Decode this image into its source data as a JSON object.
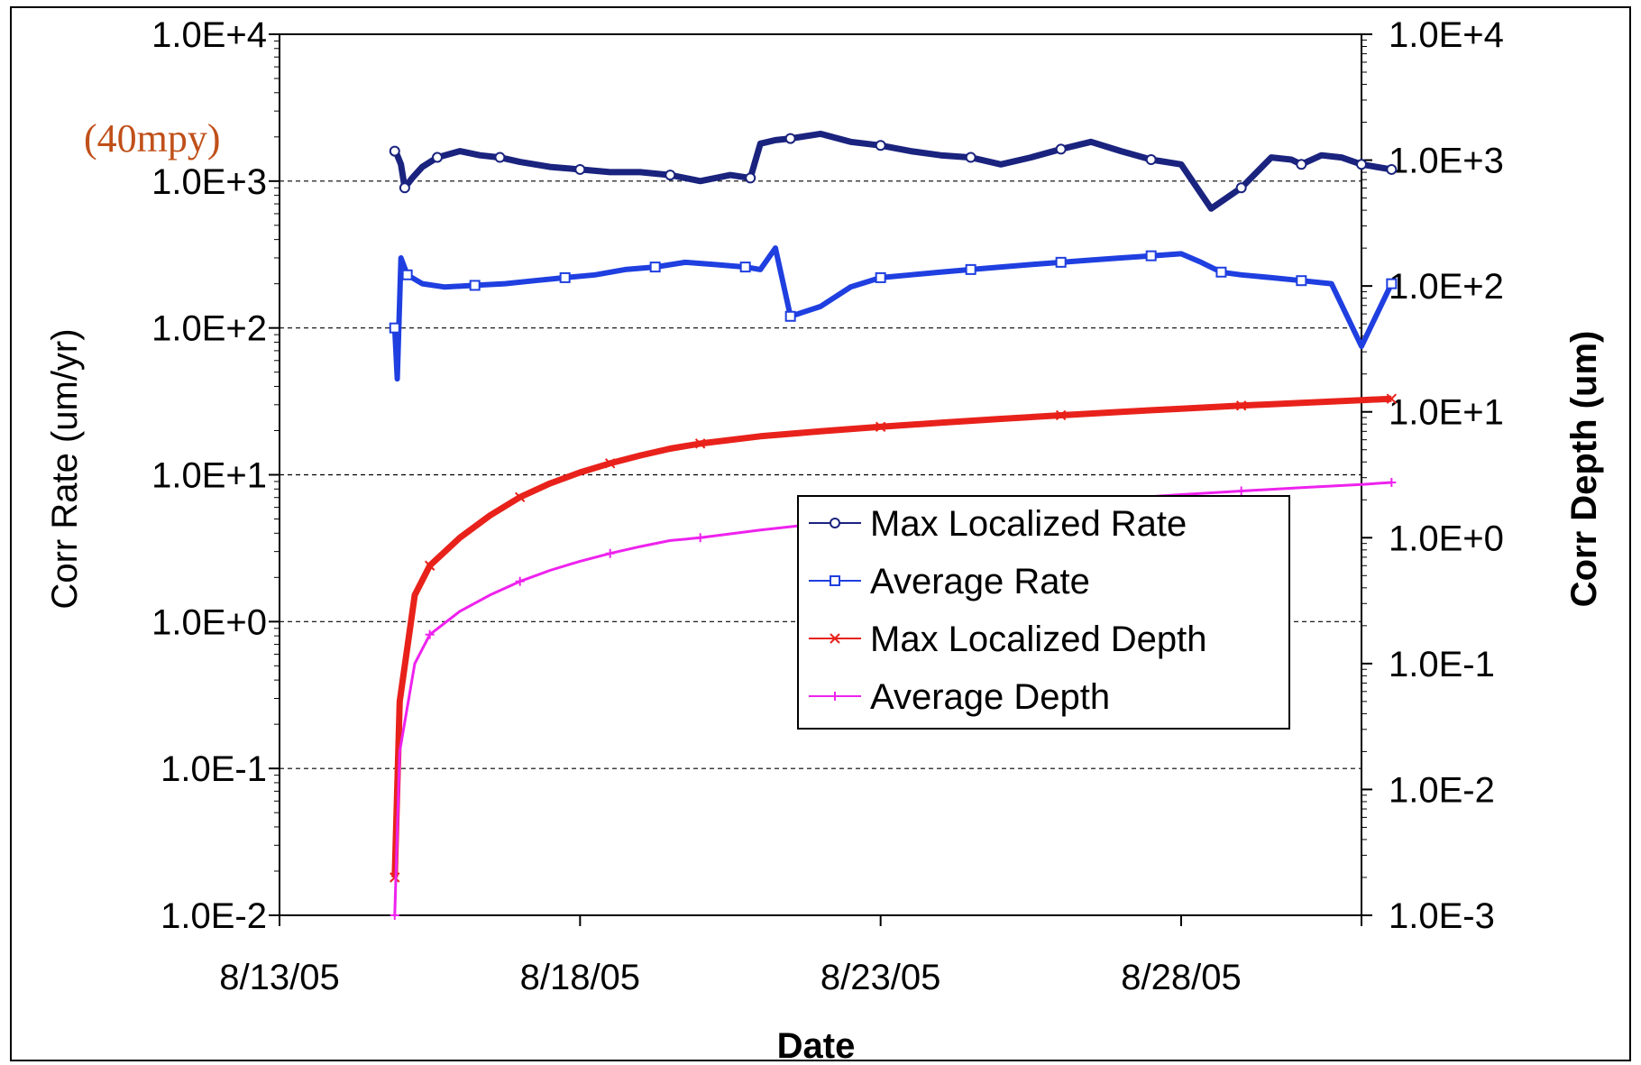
{
  "chart_data": {
    "type": "line",
    "title": "",
    "xlabel": "Date",
    "ylabel": "Corr Rate (um/yr)",
    "ylabel_right": "Corr Depth (um)",
    "x_type": "date",
    "x_ticks": [
      "8/13/05",
      "8/18/05",
      "8/23/05",
      "8/28/05"
    ],
    "xlim": [
      "2005-08-13",
      "2005-08-31"
    ],
    "y_scale": "log",
    "ylim": [
      0.01,
      10000
    ],
    "y_ticks": [
      "1.0E-2",
      "1.0E-1",
      "1.0E+0",
      "1.0E+1",
      "1.0E+2",
      "1.0E+3",
      "1.0E+4"
    ],
    "y2_scale": "log",
    "y2lim": [
      0.001,
      10000
    ],
    "y2_ticks": [
      "1.0E-3",
      "1.0E-2",
      "1.0E-1",
      "1.0E+0",
      "1.0E+1",
      "1.0E+2",
      "1.0E+3",
      "1.0E+4"
    ],
    "grid_y": true,
    "legend_position": "lower-right",
    "annotation": {
      "text": "(40mpy)",
      "color": "#c0501a",
      "y": 1000
    },
    "series": [
      {
        "name": "Max Localized Rate",
        "axis": "left",
        "color": "#1a237e",
        "marker": "circle",
        "x": [
          "2005-08-14 22:00",
          "2005-08-14 23:00",
          "2005-08-15 00:30",
          "2005-08-15 02:00",
          "2005-08-15 05:00",
          "2005-08-15 09:00",
          "2005-08-15 15:00",
          "2005-08-16 00:00",
          "2005-08-16 08:00",
          "2005-08-16 16:00",
          "2005-08-17 00:00",
          "2005-08-17 12:00",
          "2005-08-18 00:00",
          "2005-08-18 12:00",
          "2005-08-19 00:00",
          "2005-08-19 12:00",
          "2005-08-20 00:00",
          "2005-08-20 12:00",
          "2005-08-20 20:00",
          "2005-08-21 00:00",
          "2005-08-21 06:00",
          "2005-08-21 12:00",
          "2005-08-22 00:00",
          "2005-08-22 12:00",
          "2005-08-23 00:00",
          "2005-08-23 12:00",
          "2005-08-24 00:00",
          "2005-08-24 12:00",
          "2005-08-25 00:00",
          "2005-08-25 12:00",
          "2005-08-26 00:00",
          "2005-08-26 12:00",
          "2005-08-27 00:00",
          "2005-08-27 12:00",
          "2005-08-28 00:00",
          "2005-08-28 12:00",
          "2005-08-29 00:00",
          "2005-08-29 12:00",
          "2005-08-29 20:00",
          "2005-08-30 00:00",
          "2005-08-30 08:00",
          "2005-08-30 16:00",
          "2005-08-31 00:00",
          "2005-08-31 12:00"
        ],
        "values": [
          1600,
          1500,
          1300,
          900,
          1050,
          1250,
          1450,
          1600,
          1500,
          1450,
          1350,
          1250,
          1200,
          1150,
          1150,
          1100,
          1000,
          1100,
          1050,
          1800,
          1900,
          1950,
          2100,
          1850,
          1750,
          1600,
          1500,
          1450,
          1300,
          1450,
          1650,
          1850,
          1600,
          1400,
          1300,
          650,
          900,
          1450,
          1400,
          1300,
          1500,
          1450,
          1300,
          1200
        ]
      },
      {
        "name": "Average Rate",
        "axis": "left",
        "color": "#1f3fe0",
        "marker": "square",
        "x": [
          "2005-08-14 22:00",
          "2005-08-14 23:00",
          "2005-08-15 00:30",
          "2005-08-15 03:00",
          "2005-08-15 09:00",
          "2005-08-15 18:00",
          "2005-08-16 06:00",
          "2005-08-16 18:00",
          "2005-08-17 06:00",
          "2005-08-17 18:00",
          "2005-08-18 06:00",
          "2005-08-18 18:00",
          "2005-08-19 06:00",
          "2005-08-19 18:00",
          "2005-08-20 06:00",
          "2005-08-20 18:00",
          "2005-08-21 00:00",
          "2005-08-21 06:00",
          "2005-08-21 12:00",
          "2005-08-22 00:00",
          "2005-08-22 12:00",
          "2005-08-23 00:00",
          "2005-08-23 12:00",
          "2005-08-24 00:00",
          "2005-08-24 12:00",
          "2005-08-25 00:00",
          "2005-08-25 12:00",
          "2005-08-26 00:00",
          "2005-08-26 12:00",
          "2005-08-27 00:00",
          "2005-08-27 12:00",
          "2005-08-28 00:00",
          "2005-08-28 08:00",
          "2005-08-28 16:00",
          "2005-08-29 00:00",
          "2005-08-29 12:00",
          "2005-08-30 00:00",
          "2005-08-30 12:00",
          "2005-08-31 00:00",
          "2005-08-31 12:00"
        ],
        "values": [
          100,
          45,
          300,
          230,
          200,
          190,
          195,
          200,
          210,
          220,
          230,
          250,
          260,
          280,
          270,
          260,
          250,
          350,
          120,
          140,
          190,
          220,
          230,
          240,
          250,
          260,
          270,
          280,
          290,
          300,
          310,
          320,
          280,
          240,
          230,
          220,
          210,
          200,
          75,
          200
        ]
      },
      {
        "name": "Max Localized Depth",
        "axis": "right",
        "color": "#e8221b",
        "marker": "x",
        "x": [
          "2005-08-14 22:00",
          "2005-08-15 00:00",
          "2005-08-15 06:00",
          "2005-08-15 12:00",
          "2005-08-16 00:00",
          "2005-08-16 12:00",
          "2005-08-17 00:00",
          "2005-08-17 12:00",
          "2005-08-18 00:00",
          "2005-08-18 12:00",
          "2005-08-19 00:00",
          "2005-08-19 12:00",
          "2005-08-20 00:00",
          "2005-08-21 00:00",
          "2005-08-22 00:00",
          "2005-08-23 00:00",
          "2005-08-24 00:00",
          "2005-08-25 00:00",
          "2005-08-26 00:00",
          "2005-08-27 00:00",
          "2005-08-28 00:00",
          "2005-08-29 00:00",
          "2005-08-30 00:00",
          "2005-08-31 00:00",
          "2005-08-31 12:00"
        ],
        "values": [
          0.002,
          0.05,
          0.35,
          0.6,
          1.0,
          1.5,
          2.1,
          2.7,
          3.3,
          3.9,
          4.5,
          5.1,
          5.6,
          6.4,
          7.0,
          7.6,
          8.2,
          8.8,
          9.4,
          10.0,
          10.6,
          11.2,
          11.8,
          12.4,
          12.7
        ]
      },
      {
        "name": "Average Depth",
        "axis": "right",
        "color": "#ee22ee",
        "marker": "plus",
        "x": [
          "2005-08-14 22:00",
          "2005-08-15 00:00",
          "2005-08-15 06:00",
          "2005-08-15 12:00",
          "2005-08-16 00:00",
          "2005-08-16 12:00",
          "2005-08-17 00:00",
          "2005-08-17 12:00",
          "2005-08-18 00:00",
          "2005-08-18 12:00",
          "2005-08-19 00:00",
          "2005-08-19 12:00",
          "2005-08-20 00:00",
          "2005-08-21 00:00",
          "2005-08-22 00:00",
          "2005-08-23 00:00",
          "2005-08-24 00:00",
          "2005-08-25 00:00",
          "2005-08-26 00:00",
          "2005-08-27 00:00",
          "2005-08-28 00:00",
          "2005-08-29 00:00",
          "2005-08-30 00:00",
          "2005-08-31 00:00",
          "2005-08-31 12:00"
        ],
        "values": [
          0.001,
          0.02,
          0.1,
          0.17,
          0.26,
          0.35,
          0.45,
          0.55,
          0.65,
          0.75,
          0.85,
          0.95,
          1.0,
          1.15,
          1.3,
          1.45,
          1.6,
          1.75,
          1.9,
          2.05,
          2.2,
          2.35,
          2.5,
          2.65,
          2.75
        ]
      }
    ]
  }
}
